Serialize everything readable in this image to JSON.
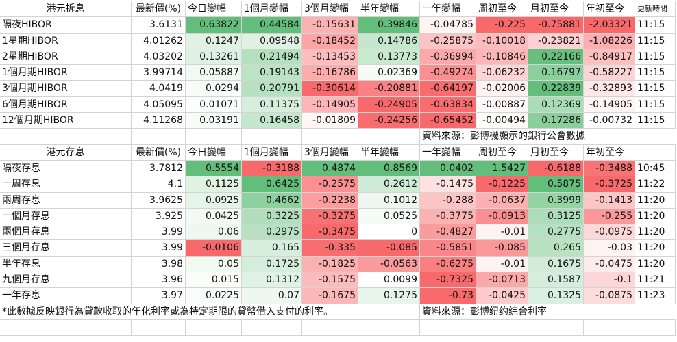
{
  "hibor": {
    "headers": [
      "港元拆息",
      "最新價(%)",
      "今日變幅",
      "1個月變幅",
      "3個月變幅",
      "半年變幅",
      "一年變幅",
      "周初至今",
      "月初至今",
      "年初至今",
      "更新時間"
    ],
    "rows": [
      {
        "name": "隔夜HIBOR",
        "values": [
          "3.6131",
          "0.63822",
          "0.44584",
          "-0.15631",
          "0.39846",
          "-0.04785",
          "-0.225",
          "-0.75881",
          "-2.03321"
        ],
        "time": "11:15"
      },
      {
        "name": "1星期HIBOR",
        "values": [
          "4.01262",
          "0.1247",
          "0.09548",
          "-0.18452",
          "0.14786",
          "-0.25875",
          "-0.10018",
          "-0.23821",
          "-1.08226"
        ],
        "time": "11:15"
      },
      {
        "name": "2星期HIBOR",
        "values": [
          "4.03202",
          "0.13261",
          "0.21494",
          "-0.13453",
          "0.13773",
          "-0.36994",
          "-0.10846",
          "0.22166",
          "-0.84917"
        ],
        "time": "11:15"
      },
      {
        "name": "1個月期HIBOR",
        "values": [
          "3.99714",
          "0.05887",
          "0.19143",
          "-0.16786",
          "0.02369",
          "-0.49274",
          "-0.06232",
          "0.16797",
          "-0.58227"
        ],
        "time": "11:15"
      },
      {
        "name": "3個月期HIBOR",
        "values": [
          "4.0419",
          "0.0294",
          "0.20791",
          "-0.30614",
          "-0.20881",
          "-0.64197",
          "-0.02006",
          "0.22839",
          "-0.32893"
        ],
        "time": "11:15"
      },
      {
        "name": "6個月期HIBOR",
        "values": [
          "4.05095",
          "0.01071",
          "0.11375",
          "-0.14905",
          "-0.24905",
          "-0.63834",
          "-0.00887",
          "0.12369",
          "-0.14905"
        ],
        "time": "11:15"
      },
      {
        "name": "12個月期HIBOR",
        "values": [
          "4.11268",
          "0.03191",
          "0.16458",
          "-0.01809",
          "-0.24256",
          "-0.65452",
          "-0.00494",
          "0.17286",
          "-0.00732"
        ],
        "time": "11:15"
      }
    ],
    "source": "資料來源：彭博機顯示的銀行公會數據"
  },
  "deposit": {
    "headers": [
      "港元存息",
      "最新價(%)",
      "今日變幅",
      "1個月變幅",
      "3個月變幅",
      "半年變幅",
      "一年變幅",
      "周初至今",
      "月初至今",
      "年初至今"
    ],
    "rows": [
      {
        "name": "隔夜存息",
        "values": [
          "3.7812",
          "0.5554",
          "-0.3188",
          "0.4874",
          "0.8569",
          "0.0402",
          "1.5427",
          "-0.6188",
          "-0.3488"
        ],
        "time": "10:45"
      },
      {
        "name": "一周存息",
        "values": [
          "4.1",
          "0.1125",
          "0.6425",
          "-0.2575",
          "0.2612",
          "-0.1475",
          "-0.1225",
          "0.5875",
          "-0.3725"
        ],
        "time": "11:22"
      },
      {
        "name": "兩周存息",
        "values": [
          "3.9625",
          "0.0925",
          "0.4662",
          "-0.2238",
          "0.1012",
          "-0.288",
          "-0.0637",
          "0.3999",
          "-0.1413"
        ],
        "time": "11:20"
      },
      {
        "name": "一個月存息",
        "values": [
          "3.925",
          "0.0425",
          "0.3225",
          "-0.3275",
          "0.0525",
          "-0.3775",
          "-0.0913",
          "0.3125",
          "-0.255"
        ],
        "time": "11:20"
      },
      {
        "name": "兩個月存息",
        "values": [
          "3.99",
          "0.06",
          "0.2975",
          "-0.3475",
          "0",
          "-0.4827",
          "-0.01",
          "0.2775",
          "-0.0975"
        ],
        "time": "11:20"
      },
      {
        "name": "三個月存息",
        "values": [
          "3.99",
          "-0.0106",
          "0.165",
          "-0.335",
          "-0.085",
          "-0.5851",
          "-0.085",
          "0.265",
          "-0.03"
        ],
        "time": "11:20"
      },
      {
        "name": "半年存息",
        "values": [
          "3.98",
          "0.05",
          "0.1725",
          "-0.1825",
          "-0.0563",
          "-0.6275",
          "-0.01",
          "0.1675",
          "-0.0475"
        ],
        "time": "11:20"
      },
      {
        "name": "九個月存息",
        "values": [
          "3.96",
          "0.015",
          "0.1312",
          "-0.1575",
          "0.0099",
          "-0.7325",
          "-0.0713",
          "0.1587",
          "-0.1"
        ],
        "time": "11:21"
      },
      {
        "name": "一年存息",
        "values": [
          "3.97",
          "0.0225",
          "0.07",
          "-0.1675",
          "0.1275",
          "-0.73",
          "-0.0425",
          "0.1325",
          "-0.0875"
        ],
        "time": "11:23"
      }
    ],
    "footnote": "*此數據反映銀行為貸款收取的年化利率或為特定期限的貸幣借入支付的利率。",
    "source": "資料來源：彭博纽约综合利率"
  },
  "colors": {
    "pos_strong": "#63be7b",
    "neg_strong": "#f8696b",
    "neutral": "#ffffff"
  }
}
